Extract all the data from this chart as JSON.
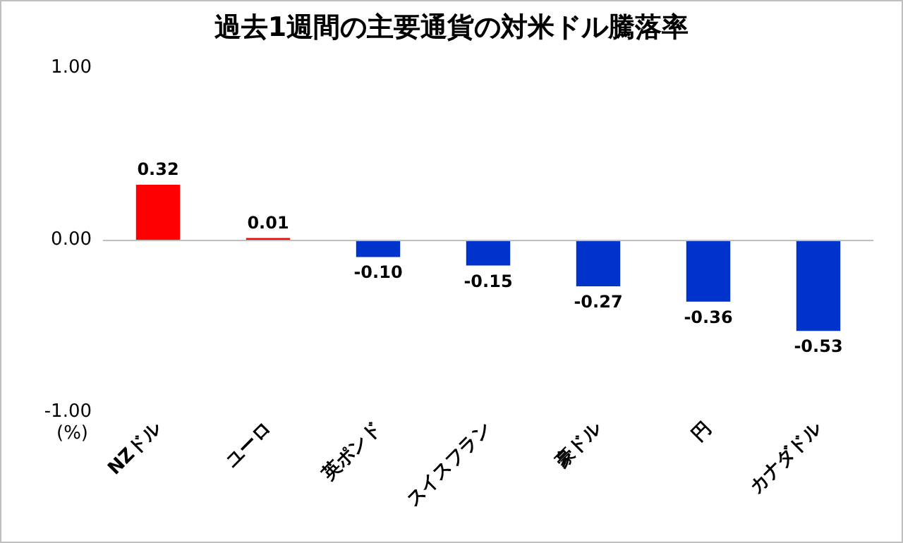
{
  "chart_data": {
    "type": "bar",
    "title": "過去1週間の主要通貨の対米ドル騰落率",
    "ylabel": "(%)",
    "categories": [
      "NZドル",
      "ユーロ",
      "英ポンド",
      "スイスフラン",
      "豪ドル",
      "円",
      "カナダドル"
    ],
    "values": [
      0.32,
      0.01,
      -0.1,
      -0.15,
      -0.27,
      -0.36,
      -0.53
    ],
    "colors": [
      "#ff0000",
      "#ff0000",
      "#0033cc",
      "#0033cc",
      "#0033cc",
      "#0033cc",
      "#0033cc"
    ],
    "value_labels": [
      "0.32",
      "0.01",
      "-0.10",
      "-0.15",
      "-0.27",
      "-0.36",
      "-0.53"
    ],
    "ylim": [
      -1,
      1
    ],
    "yticks": [
      {
        "value": -1,
        "label": "-1.00"
      },
      {
        "value": 0,
        "label": "0.00"
      },
      {
        "value": 1,
        "label": "1.00"
      }
    ],
    "ref_lines": [
      {
        "axis": "y",
        "value": 0,
        "color": "#bfbfbf"
      }
    ],
    "grid": false
  }
}
